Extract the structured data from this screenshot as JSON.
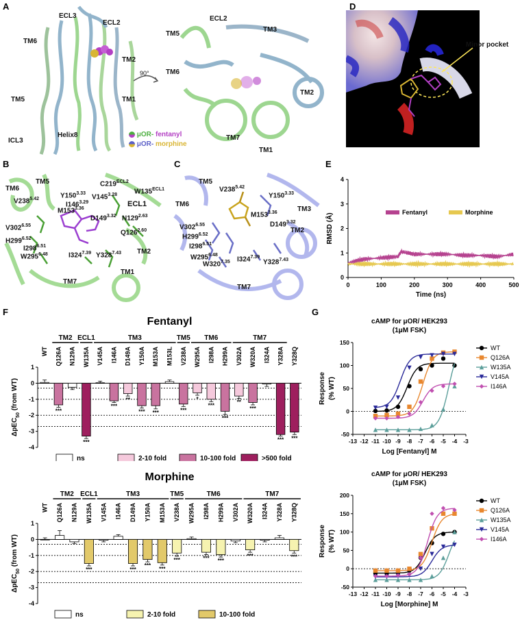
{
  "panels": {
    "A": "A",
    "B": "B",
    "C": "C",
    "D": "D",
    "E": "E",
    "F": "F",
    "G": "G"
  },
  "panelA": {
    "left_labels": [
      "ECL3",
      "ECL2",
      "TM6",
      "TM2",
      "TM5",
      "TM1",
      "ICL3",
      "Helix8"
    ],
    "right_labels": [
      "ECL2",
      "TM5",
      "TM3",
      "TM6",
      "TM2",
      "TM7",
      "TM1"
    ],
    "rotation": "90°",
    "legend": [
      {
        "receptor": "μOR-",
        "ligand": "fentanyl",
        "receptor_color": "#4caf3f",
        "ligand_color": "#b33fc4"
      },
      {
        "receptor": "μOR-",
        "ligand": "morphine",
        "receptor_color": "#5b5fc7",
        "ligand_color": "#d9b533"
      }
    ]
  },
  "panelB": {
    "labels": [
      "TM6",
      "TM5",
      "Y150",
      "3.33",
      "C219",
      "ECL2",
      "W135",
      "ECL1",
      "V238",
      "5.42",
      "V145",
      "3.28",
      "I146",
      "3.29",
      "M153",
      "3.36",
      "ECL1",
      "V302",
      "6.55",
      "D149",
      "3.32",
      "N129",
      "2.63",
      "H299",
      "6.52",
      "Q126",
      "2.60",
      "I298",
      "6.51",
      "W295",
      "6.48",
      "I324",
      "7.39",
      "Y328",
      "7.43",
      "TM2",
      "TM7",
      "TM1"
    ]
  },
  "panelC": {
    "labels": [
      "TM5",
      "V238",
      "5.42",
      "Y150",
      "3.33",
      "TM6",
      "TM3",
      "M153",
      "3.36",
      "V302",
      "6.55",
      "D149",
      "3.32",
      "H299",
      "6.52",
      "TM2",
      "I298",
      "6.51",
      "W295",
      "6.48",
      "W320",
      "7.35",
      "I324",
      "7.39",
      "Y328",
      "7.43",
      "TM7"
    ]
  },
  "panelD": {
    "annotation": "Minor pocket"
  },
  "panelE": {
    "chart_data": {
      "type": "line",
      "xlabel": "Time (ns)",
      "ylabel": "RMSD (Å)",
      "xlim": [
        0,
        500
      ],
      "ylim": [
        0,
        4
      ],
      "xticks": [
        0,
        100,
        200,
        300,
        400,
        500
      ],
      "yticks": [
        0,
        1,
        2,
        3,
        4
      ],
      "legend_position": "center",
      "series": [
        {
          "name": "Fentanyl",
          "color": "#b5428f",
          "x": [
            0,
            50,
            100,
            150,
            160,
            200,
            250,
            300,
            350,
            400,
            450,
            500
          ],
          "values": [
            0.6,
            0.75,
            0.8,
            0.85,
            1.05,
            0.95,
            0.95,
            0.95,
            0.9,
            0.9,
            0.85,
            0.95
          ]
        },
        {
          "name": "Morphine",
          "color": "#e6c84f",
          "x": [
            0,
            50,
            100,
            150,
            200,
            250,
            300,
            350,
            400,
            450,
            500
          ],
          "values": [
            0.55,
            0.55,
            0.55,
            0.55,
            0.55,
            0.55,
            0.55,
            0.55,
            0.55,
            0.55,
            0.55
          ]
        }
      ]
    }
  },
  "panelF": {
    "fentanyl": {
      "title": "Fentanyl",
      "ylabel_main": "ΔpEC",
      "ylabel_sub": "50",
      "ylabel_tail": " (from WT)",
      "groups": [
        {
          "name": "TM2",
          "from": 1,
          "to": 2
        },
        {
          "name": "ECL1",
          "from": 3,
          "to": 3
        },
        {
          "name": "TM3",
          "from": 4,
          "to": 9
        },
        {
          "name": "TM5",
          "from": 10,
          "to": 10
        },
        {
          "name": "TM6",
          "from": 11,
          "to": 13
        },
        {
          "name": "TM7",
          "from": 14,
          "to": 17
        }
      ],
      "chart_data": {
        "type": "bar",
        "categories": [
          "WT",
          "Q126A",
          "N129A",
          "W135A",
          "V145A",
          "I146A",
          "D149A",
          "Y150A",
          "M153A",
          "M153L",
          "V238A",
          "W295A",
          "I298A",
          "H299A",
          "V302A",
          "W320A",
          "I324A",
          "Y328A",
          "Y328Q"
        ],
        "values": [
          0.05,
          -1.35,
          -0.25,
          -3.3,
          0.03,
          -1.1,
          -0.65,
          -1.4,
          -1.4,
          0.1,
          -1.3,
          -0.6,
          -1.0,
          -1.75,
          -0.8,
          -1.2,
          -0.05,
          -3.2,
          -3.05
        ],
        "errors": [
          0.15,
          0.15,
          0.15,
          0.15,
          0.1,
          0.1,
          0.15,
          0.15,
          0.2,
          0.1,
          0.15,
          0.15,
          0.15,
          0.2,
          0.15,
          0.15,
          0.15,
          0.1,
          0.15
        ],
        "significance": [
          "",
          "***",
          "",
          "***",
          "",
          "***",
          "**",
          "***",
          "***",
          "",
          "***",
          "*",
          "***",
          "***",
          "**",
          "***",
          "",
          "***",
          "***"
        ],
        "classes": [
          "ns",
          "10-100",
          "ns",
          "500",
          "ns",
          "10-100",
          "2-10",
          "10-100",
          "10-100",
          "ns",
          "10-100",
          "2-10",
          "2-10",
          "10-100",
          "2-10",
          "10-100",
          "ns",
          "500",
          "500"
        ],
        "ylim": [
          -4,
          1
        ],
        "yticks": [
          1,
          0,
          -1,
          -2,
          -3,
          -4
        ],
        "reference_lines": [
          -0.3,
          -1,
          -2,
          -2.7
        ]
      },
      "legend": [
        {
          "label": "ns",
          "color": "#ffffff"
        },
        {
          "label": "2-10 fold",
          "color": "#f5c9dc"
        },
        {
          "label": "10-100 fold",
          "color": "#c9739f"
        },
        {
          "label": ">500 fold",
          "color": "#9e1f5e"
        }
      ]
    },
    "morphine": {
      "title": "Morphine",
      "ylabel_main": "ΔpEC",
      "ylabel_sub": "50",
      "ylabel_tail": " (from WT)",
      "groups": [
        {
          "name": "TM2",
          "from": 1,
          "to": 2
        },
        {
          "name": "ECL1",
          "from": 3,
          "to": 3
        },
        {
          "name": "TM3",
          "from": 4,
          "to": 8
        },
        {
          "name": "TM5",
          "from": 9,
          "to": 9
        },
        {
          "name": "TM6",
          "from": 10,
          "to": 13
        },
        {
          "name": "TM7",
          "from": 14,
          "to": 17
        }
      ],
      "chart_data": {
        "type": "bar",
        "categories": [
          "WT",
          "Q126A",
          "N129A",
          "W135A",
          "V145A",
          "I146A",
          "D149A",
          "Y150A",
          "M153A",
          "V238A",
          "W295A",
          "I298A",
          "H299A",
          "V302A",
          "W320A",
          "I324A",
          "Y328A",
          "Y328Q"
        ],
        "values": [
          0.0,
          0.25,
          -0.15,
          -1.5,
          -0.05,
          0.2,
          -1.5,
          -1.25,
          -1.45,
          -0.85,
          0.05,
          -0.8,
          -0.95,
          -0.1,
          -0.65,
          -0.05,
          0.1,
          -0.7
        ],
        "errors": [
          0.1,
          0.3,
          0.1,
          0.15,
          0.1,
          0.1,
          0.15,
          0.15,
          0.15,
          0.2,
          0.1,
          0.15,
          0.15,
          0.1,
          0.15,
          0.1,
          0.15,
          0.15
        ],
        "significance": [
          "",
          "",
          "",
          "***",
          "",
          "",
          "***",
          "***",
          "***",
          "***",
          "",
          "***",
          "***",
          "",
          "***",
          "",
          "",
          "***"
        ],
        "classes": [
          "ns",
          "ns",
          "ns",
          "10-100",
          "ns",
          "ns",
          "10-100",
          "10-100",
          "10-100",
          "2-10",
          "ns",
          "2-10",
          "2-10",
          "ns",
          "2-10",
          "ns",
          "ns",
          "2-10"
        ],
        "ylim": [
          -4,
          1
        ],
        "yticks": [
          1,
          0,
          -1,
          -2,
          -3,
          -4
        ],
        "reference_lines": [
          -0.3,
          -1,
          -2,
          -2.7
        ]
      },
      "legend": [
        {
          "label": "ns",
          "color": "#ffffff"
        },
        {
          "label": "2-10 fold",
          "color": "#f6f3b0"
        },
        {
          "label": "10-100 fold",
          "color": "#e2c96a"
        }
      ]
    }
  },
  "panelG": {
    "fentanyl": {
      "title_line1": "cAMP for μOR/ HEK293",
      "title_line2": "(1μM FSK)",
      "ylabel_line1": "Response",
      "ylabel_line2": "(% WT)",
      "xlabel": "Log [Fentanyl] M",
      "chart_data": {
        "type": "line",
        "xlim": [
          -13,
          -3
        ],
        "ylim": [
          -50,
          150
        ],
        "xticks": [
          -13,
          -12,
          -11,
          -10,
          -9,
          -8,
          -7,
          -6,
          -5,
          -4,
          -3
        ],
        "yticks": [
          -50,
          0,
          50,
          100,
          150
        ],
        "legend_position": "right",
        "series": [
          {
            "name": "WT",
            "color": "#000000",
            "marker": "circle",
            "bottom": 0,
            "top": 105,
            "ec50": -8.2,
            "x": [
              -11,
              -10,
              -9,
              -8,
              -7,
              -6,
              -5,
              -4
            ],
            "values": [
              1,
              2,
              10,
              55,
              92,
              100,
              115,
              100
            ]
          },
          {
            "name": "Q126A",
            "color": "#e8872e",
            "marker": "square",
            "bottom": -10,
            "top": 130,
            "ec50": -6.8,
            "x": [
              -11,
              -10,
              -9,
              -8,
              -7,
              -6,
              -5,
              -4
            ],
            "values": [
              -10,
              -8,
              -5,
              10,
              65,
              115,
              128,
              130
            ]
          },
          {
            "name": "W135A",
            "color": "#5b9e9a",
            "marker": "triangle",
            "bottom": -40,
            "top": 150,
            "ec50": -4.5,
            "x": [
              -11,
              -10,
              -9,
              -8,
              -7,
              -6,
              -5,
              -4
            ],
            "values": [
              -40,
              -40,
              -40,
              -40,
              -38,
              -30,
              5,
              55
            ]
          },
          {
            "name": "V145A",
            "color": "#2a2a99",
            "marker": "tri-down",
            "bottom": 8,
            "top": 125,
            "ec50": -8.8,
            "x": [
              -11,
              -10,
              -9,
              -8,
              -7,
              -6,
              -5,
              -4
            ],
            "values": [
              8,
              10,
              30,
              95,
              118,
              122,
              125,
              125
            ]
          },
          {
            "name": "I146A",
            "color": "#c04fb0",
            "marker": "diamond",
            "bottom": -15,
            "top": 60,
            "ec50": -6.8,
            "x": [
              -11,
              -10,
              -9,
              -8,
              -7,
              -6,
              -5,
              -4
            ],
            "values": [
              -15,
              -15,
              -12,
              -5,
              20,
              45,
              55,
              60
            ]
          }
        ]
      }
    },
    "morphine": {
      "title_line1": "cAMP for μOR/ HEK293",
      "title_line2": "(1μM FSK)",
      "ylabel_line1": "Response",
      "ylabel_line2": "(% WT)",
      "xlabel": "Log [Morphine] M",
      "chart_data": {
        "type": "line",
        "xlim": [
          -13,
          -3
        ],
        "ylim": [
          -50,
          200
        ],
        "xticks": [
          -13,
          -12,
          -11,
          -10,
          -9,
          -8,
          -7,
          -6,
          -5,
          -4,
          -3
        ],
        "yticks": [
          -50,
          0,
          50,
          100,
          150,
          200
        ],
        "legend_position": "right",
        "series": [
          {
            "name": "WT",
            "color": "#000000",
            "marker": "circle",
            "bottom": -12,
            "top": 100,
            "ec50": -6.6,
            "x": [
              -11,
              -10,
              -9,
              -8,
              -7,
              -6,
              -5,
              -4
            ],
            "values": [
              -12,
              -12,
              -10,
              -5,
              30,
              70,
              95,
              100
            ]
          },
          {
            "name": "Q126A",
            "color": "#e8872e",
            "marker": "square",
            "bottom": -5,
            "top": 150,
            "ec50": -6.0,
            "x": [
              -11,
              -10,
              -9,
              -8,
              -7,
              -6,
              -5,
              -4
            ],
            "values": [
              -5,
              -5,
              -5,
              0,
              40,
              110,
              150,
              150
            ]
          },
          {
            "name": "W135A",
            "color": "#5b9e9a",
            "marker": "triangle",
            "bottom": -30,
            "top": 110,
            "ec50": -4.5,
            "x": [
              -11,
              -10,
              -9,
              -8,
              -7,
              -6,
              -5,
              -4
            ],
            "values": [
              -30,
              -30,
              -30,
              -30,
              -30,
              -20,
              30,
              100
            ]
          },
          {
            "name": "V145A",
            "color": "#2a2a99",
            "marker": "tri-down",
            "bottom": -22,
            "top": 65,
            "ec50": -6.0,
            "x": [
              -11,
              -10,
              -9,
              -8,
              -7,
              -6,
              -5,
              -4
            ],
            "values": [
              -22,
              -22,
              -20,
              -18,
              0,
              40,
              60,
              65
            ]
          },
          {
            "name": "I146A",
            "color": "#c04fb0",
            "marker": "diamond",
            "bottom": -20,
            "top": 165,
            "ec50": -6.4,
            "x": [
              -11,
              -10,
              -9,
              -8,
              -7,
              -6,
              -5,
              -4
            ],
            "values": [
              -20,
              -20,
              -18,
              -15,
              30,
              150,
              165,
              160
            ]
          }
        ]
      }
    }
  }
}
